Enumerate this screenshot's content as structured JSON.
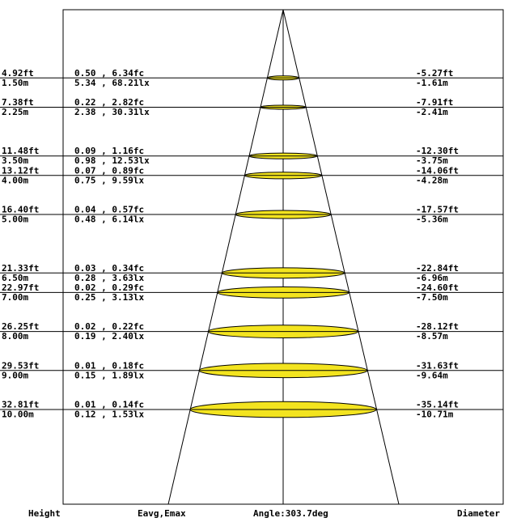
{
  "chart_data": {
    "type": "cone-diagram",
    "beam_angle_label": "Angle:303.7deg",
    "footer": {
      "height": "Height",
      "eavg_emax": "Eavg,Emax",
      "angle": "Angle:303.7deg",
      "diameter": "Diameter"
    },
    "rows": [
      {
        "height_m": 1.5,
        "height_ft_label": "4.92ft",
        "height_m_label": "1.50m",
        "fc_label": "0.50 , 6.34fc",
        "lx_label": "5.34 , 68.21lx",
        "diam_ft_label": "-5.27ft",
        "diam_m_label": "-1.61m"
      },
      {
        "height_m": 2.25,
        "height_ft_label": "7.38ft",
        "height_m_label": "2.25m",
        "fc_label": "0.22 , 2.82fc",
        "lx_label": "2.38 , 30.31lx",
        "diam_ft_label": "-7.91ft",
        "diam_m_label": "-2.41m"
      },
      {
        "height_m": 3.5,
        "height_ft_label": "11.48ft",
        "height_m_label": "3.50m",
        "fc_label": "0.09 , 1.16fc",
        "lx_label": "0.98 , 12.53lx",
        "diam_ft_label": "-12.30ft",
        "diam_m_label": "-3.75m"
      },
      {
        "height_m": 4.0,
        "height_ft_label": "13.12ft",
        "height_m_label": "4.00m",
        "fc_label": "0.07 , 0.89fc",
        "lx_label": "0.75 , 9.59lx",
        "diam_ft_label": "-14.06ft",
        "diam_m_label": "-4.28m"
      },
      {
        "height_m": 5.0,
        "height_ft_label": "16.40ft",
        "height_m_label": "5.00m",
        "fc_label": "0.04 , 0.57fc",
        "lx_label": "0.48 , 6.14lx",
        "diam_ft_label": "-17.57ft",
        "diam_m_label": "-5.36m"
      },
      {
        "height_m": 6.5,
        "height_ft_label": "21.33ft",
        "height_m_label": "6.50m",
        "fc_label": "0.03 , 0.34fc",
        "lx_label": "0.28 , 3.63lx",
        "diam_ft_label": "-22.84ft",
        "diam_m_label": "-6.96m"
      },
      {
        "height_m": 7.0,
        "height_ft_label": "22.97ft",
        "height_m_label": "7.00m",
        "fc_label": "0.02 , 0.29fc",
        "lx_label": "0.25 , 3.13lx",
        "diam_ft_label": "-24.60ft",
        "diam_m_label": "-7.50m"
      },
      {
        "height_m": 8.0,
        "height_ft_label": "26.25ft",
        "height_m_label": "8.00m",
        "fc_label": "0.02 , 0.22fc",
        "lx_label": "0.19 , 2.40lx",
        "diam_ft_label": "-28.12ft",
        "diam_m_label": "-8.57m"
      },
      {
        "height_m": 9.0,
        "height_ft_label": "29.53ft",
        "height_m_label": "9.00m",
        "fc_label": "0.01 , 0.18fc",
        "lx_label": "0.15 , 1.89lx",
        "diam_ft_label": "-31.63ft",
        "diam_m_label": "-9.64m"
      },
      {
        "height_m": 10.0,
        "height_ft_label": "32.81ft",
        "height_m_label": "10.00m",
        "fc_label": "0.01 , 0.14fc",
        "lx_label": "0.12 , 1.53lx",
        "diam_ft_label": "-35.14ft",
        "diam_m_label": "-10.71m"
      }
    ],
    "colors": {
      "ellipse_fill": "#f3e41f",
      "ellipse_stroke": "#000000",
      "line": "#000000"
    }
  }
}
